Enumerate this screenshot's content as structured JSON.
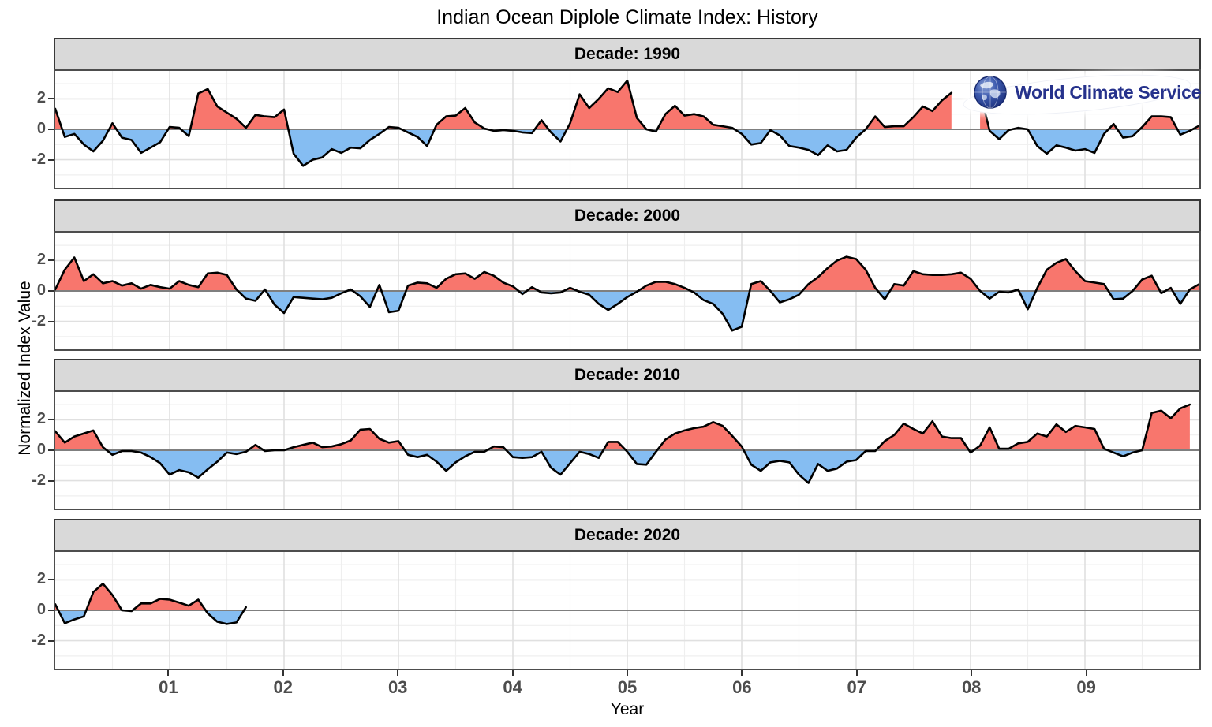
{
  "figure": {
    "title": "Indian Ocean Diplole Climate Index: History"
  },
  "axes": {
    "x_label": "Year",
    "y_label": "Normalized Index Value",
    "x_tick_labels": [
      "01",
      "02",
      "03",
      "04",
      "05",
      "06",
      "07",
      "08",
      "09"
    ],
    "y_tick_labels": [
      "2",
      "0",
      "-2"
    ]
  },
  "logo": {
    "text": "World Climate Service"
  },
  "chart_data": {
    "type": "area",
    "title": "Indian Ocean Diplole Climate Index: History",
    "xlabel": "Year",
    "ylabel": "Normalized Index Value",
    "x_unit": "month within decade (120 months per panel)",
    "x_ticks_years": [
      1,
      2,
      3,
      4,
      5,
      6,
      7,
      8,
      9
    ],
    "x_tick_labels": [
      "01",
      "02",
      "03",
      "04",
      "05",
      "06",
      "07",
      "08",
      "09"
    ],
    "y_ticks": [
      -2,
      0,
      2
    ],
    "y_minor_ticks": [
      -3,
      -1,
      1,
      3
    ],
    "ylim": [
      -3.94,
      3.94
    ],
    "grid": true,
    "legend": "none",
    "fill_rule": "red fill above zero, blue fill below zero, black line, gray zero line",
    "colors": {
      "positive_fill": "#F8766D",
      "negative_fill": "#85BDF2",
      "line": "#000000",
      "zero_line": "#7F7F7F",
      "grid_major": "#E0E0E0",
      "grid_minor": "#EFEFEF",
      "panel_border": "#4D4D4D",
      "strip_bg": "#D9D9D9",
      "tick_label": "#4D4D4D",
      "logo_text": "#26328C"
    },
    "facets": [
      {
        "label": "Decade: 1990",
        "start_year": 1990,
        "segments": [
          {
            "start_month": 0,
            "values": [
              1.35,
              -0.5,
              -0.3,
              -1.0,
              -1.45,
              -0.75,
              0.4,
              -0.55,
              -0.7,
              -1.55,
              -1.2,
              -0.85,
              0.15,
              0.1,
              -0.45,
              2.35,
              2.65,
              1.5,
              1.1,
              0.7,
              0.1,
              0.95,
              0.85,
              0.8,
              1.3,
              -1.6,
              -2.4,
              -2.0,
              -1.85,
              -1.3,
              -1.55,
              -1.2,
              -1.25,
              -0.7,
              -0.3,
              0.15,
              0.1,
              -0.2,
              -0.5,
              -1.1,
              0.3,
              0.85,
              0.9,
              1.4,
              0.45,
              0.05,
              -0.1,
              -0.05,
              -0.1,
              -0.2,
              -0.25,
              0.6,
              -0.2,
              -0.8,
              0.4,
              2.3,
              1.4,
              2.0,
              2.7,
              2.45,
              3.2,
              0.75,
              0.0,
              -0.15,
              1.0,
              1.55,
              0.9,
              1.0,
              0.85,
              0.3,
              0.2,
              0.1,
              -0.3,
              -1.0,
              -0.9,
              -0.05,
              -0.4,
              -1.1,
              -1.2,
              -1.35,
              -1.7,
              -1.05,
              -1.45,
              -1.35,
              -0.55,
              0.0,
              0.85,
              0.15,
              0.2,
              0.2,
              0.8,
              1.5,
              1.2,
              1.9,
              2.4
            ]
          },
          {
            "start_month": 97,
            "values": [
              2.45,
              -0.1,
              -0.65,
              -0.05,
              0.1,
              0.0,
              -1.1,
              -1.6,
              -1.05,
              -1.2,
              -1.4,
              -1.3,
              -1.55,
              -0.3,
              0.35,
              -0.55,
              -0.45,
              0.15,
              0.85,
              0.85,
              0.8,
              -0.35,
              -0.1,
              0.25
            ]
          }
        ]
      },
      {
        "label": "Decade: 2000",
        "start_year": 2000,
        "segments": [
          {
            "start_month": 0,
            "values": [
              0.1,
              1.4,
              2.2,
              0.65,
              1.1,
              0.5,
              0.65,
              0.35,
              0.5,
              0.15,
              0.4,
              0.25,
              0.15,
              0.65,
              0.4,
              0.25,
              1.15,
              1.2,
              1.05,
              0.1,
              -0.5,
              -0.65,
              0.1,
              -0.9,
              -1.45,
              -0.4,
              -0.45,
              -0.5,
              -0.55,
              -0.45,
              -0.15,
              0.1,
              -0.35,
              -1.05,
              0.4,
              -1.4,
              -1.3,
              0.35,
              0.55,
              0.5,
              0.2,
              0.8,
              1.1,
              1.15,
              0.8,
              1.25,
              1.0,
              0.55,
              0.3,
              -0.2,
              0.25,
              -0.1,
              -0.15,
              -0.1,
              0.2,
              -0.05,
              -0.25,
              -0.85,
              -1.25,
              -0.85,
              -0.4,
              -0.05,
              0.35,
              0.6,
              0.6,
              0.45,
              0.2,
              -0.1,
              -0.6,
              -0.85,
              -1.5,
              -2.6,
              -2.35,
              0.45,
              0.65,
              0.0,
              -0.75,
              -0.55,
              -0.25,
              0.45,
              0.9,
              1.5,
              2.0,
              2.25,
              2.1,
              1.4,
              0.2,
              -0.55,
              0.45,
              0.35,
              1.3,
              1.1,
              1.05,
              1.05,
              1.1,
              1.2,
              0.8,
              0.0,
              -0.5,
              -0.05,
              -0.1,
              0.1,
              -1.2,
              0.2,
              1.4,
              1.85,
              2.1,
              1.3,
              0.65,
              0.55,
              0.45,
              -0.55,
              -0.5,
              0.0,
              0.75,
              1.0,
              -0.15,
              0.2,
              -0.85,
              0.1,
              0.45
            ]
          }
        ]
      },
      {
        "label": "Decade: 2010",
        "start_year": 2010,
        "segments": [
          {
            "start_month": 0,
            "values": [
              1.25,
              0.5,
              0.9,
              1.1,
              1.3,
              0.2,
              -0.3,
              -0.05,
              -0.05,
              -0.15,
              -0.45,
              -0.85,
              -1.6,
              -1.3,
              -1.45,
              -1.8,
              -1.25,
              -0.75,
              -0.15,
              -0.25,
              -0.1,
              0.35,
              -0.05,
              0.0,
              0.0,
              0.2,
              0.35,
              0.5,
              0.2,
              0.25,
              0.4,
              0.65,
              1.35,
              1.4,
              0.75,
              0.5,
              0.6,
              -0.3,
              -0.45,
              -0.3,
              -0.75,
              -1.35,
              -0.8,
              -0.4,
              -0.1,
              -0.1,
              0.25,
              0.2,
              -0.45,
              -0.5,
              -0.45,
              -0.1,
              -1.15,
              -1.6,
              -0.85,
              -0.1,
              -0.25,
              -0.5,
              0.55,
              0.55,
              -0.1,
              -0.9,
              -0.95,
              -0.1,
              0.7,
              1.1,
              1.3,
              1.45,
              1.55,
              1.85,
              1.6,
              0.95,
              0.25,
              -0.95,
              -1.35,
              -0.8,
              -0.7,
              -0.8,
              -1.6,
              -2.15,
              -0.9,
              -1.35,
              -1.2,
              -0.75,
              -0.65,
              -0.05,
              -0.05,
              0.6,
              1.0,
              1.75,
              1.4,
              1.1,
              1.9,
              0.9,
              0.8,
              0.8,
              -0.15,
              0.3,
              1.5,
              0.1,
              0.1,
              0.45,
              0.55,
              1.1,
              0.9,
              1.7,
              1.2,
              1.6,
              1.5,
              1.4,
              0.1,
              -0.15,
              -0.4,
              -0.15,
              0.0,
              2.45,
              2.6,
              2.1,
              2.75,
              3.0
            ]
          }
        ]
      },
      {
        "label": "Decade: 2020",
        "start_year": 2020,
        "segments": [
          {
            "start_month": 0,
            "values": [
              0.4,
              -0.85,
              -0.6,
              -0.4,
              1.2,
              1.75,
              1.0,
              0.0,
              -0.05,
              0.45,
              0.45,
              0.75,
              0.7,
              0.5,
              0.3,
              0.7,
              -0.2,
              -0.75,
              -0.9,
              -0.8,
              0.2
            ]
          }
        ]
      }
    ]
  }
}
